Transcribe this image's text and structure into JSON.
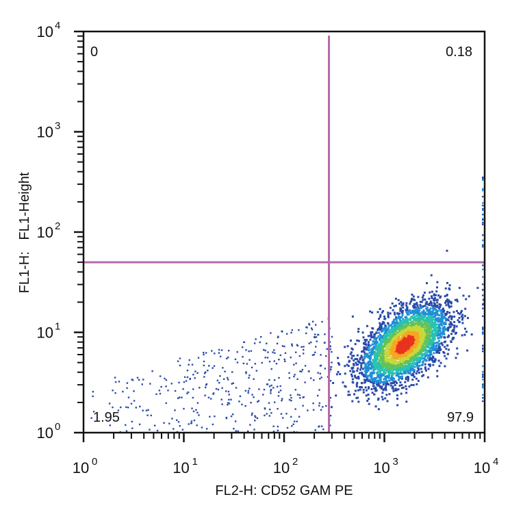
{
  "chart_data": {
    "type": "scatter",
    "subtype": "flow-cytometry-density-dotplot",
    "title": "",
    "xlabel": "FL2-H: CD52 GAM PE",
    "ylabel": "FL1-H:   FL1-Height",
    "x_scale": "log",
    "y_scale": "log",
    "xlim": [
      1,
      10000
    ],
    "ylim": [
      1,
      10000
    ],
    "x_ticks": [
      {
        "base": "10",
        "exp": "0",
        "value": 1
      },
      {
        "base": "10",
        "exp": "1",
        "value": 10
      },
      {
        "base": "10",
        "exp": "2",
        "value": 100
      },
      {
        "base": "10",
        "exp": "3",
        "value": 1000
      },
      {
        "base": "10",
        "exp": "4",
        "value": 10000
      }
    ],
    "y_ticks": [
      {
        "base": "10",
        "exp": "0",
        "value": 1
      },
      {
        "base": "10",
        "exp": "1",
        "value": 10
      },
      {
        "base": "10",
        "exp": "2",
        "value": 100
      },
      {
        "base": "10",
        "exp": "3",
        "value": 1000
      },
      {
        "base": "10",
        "exp": "4",
        "value": 10000
      }
    ],
    "quadrant_gate": {
      "x": 280,
      "y": 50,
      "color": "#b46aaa"
    },
    "quadrants": [
      {
        "position": "upper-left",
        "label": "0"
      },
      {
        "position": "upper-right",
        "label": "0.18"
      },
      {
        "position": "lower-left",
        "label": "1.95"
      },
      {
        "position": "lower-right",
        "label": "97.9"
      }
    ],
    "populations": [
      {
        "name": "main",
        "center": [
          1600,
          7.5
        ],
        "log_spread": [
          0.22,
          0.2
        ],
        "count": 3600
      },
      {
        "name": "scattered-low",
        "x_range": [
          1,
          300
        ],
        "y_range": [
          1,
          15
        ],
        "count": 420
      }
    ],
    "density_colors": [
      "#2a4aa8",
      "#1f8fd6",
      "#29c2b0",
      "#62c25a",
      "#c8d83a",
      "#f6a623",
      "#e8321f"
    ],
    "grid": false,
    "legend": "none"
  }
}
